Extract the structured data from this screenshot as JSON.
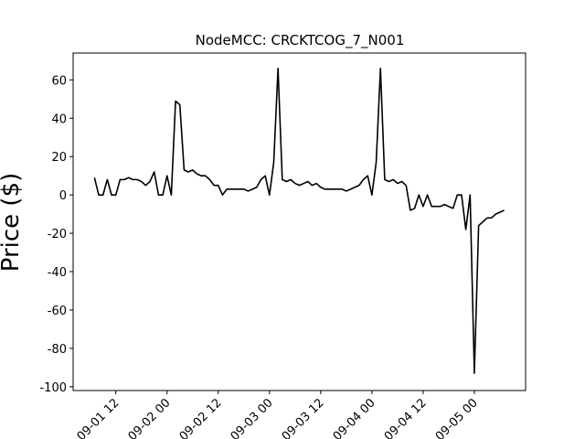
{
  "chart_data": {
    "type": "line",
    "title": "NodeMCC: CRCKTCOG_7_N001",
    "y_label": "Price ($)",
    "x": [
      "09-01 07",
      "09-01 08",
      "09-01 09",
      "09-01 10",
      "09-01 11",
      "09-01 12",
      "09-01 13",
      "09-01 14",
      "09-01 15",
      "09-01 16",
      "09-01 17",
      "09-01 18",
      "09-01 19",
      "09-01 20",
      "09-01 21",
      "09-01 22",
      "09-01 23",
      "09-02 00",
      "09-02 01",
      "09-02 02",
      "09-02 03",
      "09-02 04",
      "09-02 05",
      "09-02 06",
      "09-02 07",
      "09-02 08",
      "09-02 09",
      "09-02 10",
      "09-02 11",
      "09-02 12",
      "09-02 13",
      "09-02 14",
      "09-02 15",
      "09-02 16",
      "09-02 17",
      "09-02 18",
      "09-02 19",
      "09-02 20",
      "09-02 21",
      "09-02 22",
      "09-02 23",
      "09-03 00",
      "09-03 01",
      "09-03 02",
      "09-03 03",
      "09-03 04",
      "09-03 05",
      "09-03 06",
      "09-03 07",
      "09-03 08",
      "09-03 09",
      "09-03 10",
      "09-03 11",
      "09-03 12",
      "09-03 13",
      "09-03 14",
      "09-03 15",
      "09-03 16",
      "09-03 17",
      "09-03 18",
      "09-03 19",
      "09-03 20",
      "09-03 21",
      "09-03 22",
      "09-03 23",
      "09-04 00",
      "09-04 01",
      "09-04 02",
      "09-04 03",
      "09-04 04",
      "09-04 05",
      "09-04 06",
      "09-04 07",
      "09-04 08",
      "09-04 09",
      "09-04 10",
      "09-04 11",
      "09-04 12",
      "09-04 13",
      "09-04 14",
      "09-04 15",
      "09-04 16",
      "09-04 17",
      "09-04 18",
      "09-04 19",
      "09-04 20",
      "09-04 21",
      "09-04 22",
      "09-04 23",
      "09-05 00",
      "09-05 01",
      "09-05 02",
      "09-05 03",
      "09-05 04",
      "09-05 05",
      "09-05 06",
      "09-05 07"
    ],
    "series": [
      {
        "color": "#000000",
        "values": [
          9,
          0,
          0,
          8,
          0,
          0,
          8,
          8,
          9,
          8,
          8,
          7,
          5,
          7,
          12,
          0,
          0,
          10,
          0,
          49,
          47,
          13,
          12,
          13,
          11,
          10,
          10,
          8,
          5,
          5,
          0,
          3,
          3,
          3,
          3,
          3,
          2,
          3,
          4,
          8,
          10,
          0,
          17,
          66,
          8,
          7,
          8,
          6,
          5,
          6,
          7,
          5,
          6,
          4,
          3,
          3,
          3,
          3,
          3,
          2,
          3,
          4,
          5,
          8,
          10,
          0,
          17,
          66,
          8,
          7,
          8,
          6,
          7,
          5,
          -8,
          -7,
          0,
          -6,
          0,
          -6,
          -6,
          -6,
          -5,
          -6,
          -7,
          0,
          0,
          -18,
          0,
          -93,
          -16,
          -14,
          -12,
          -12,
          -10,
          -9,
          -8
        ]
      }
    ],
    "xlim": [
      "09-01 02",
      "09-05 12"
    ],
    "xticks": [
      "09-01 12",
      "09-02 00",
      "09-02 12",
      "09-03 00",
      "09-03 12",
      "09-04 00",
      "09-04 12",
      "09-05 00"
    ],
    "ylim": [
      -102,
      74
    ],
    "yticks": [
      -100,
      -80,
      -60,
      -40,
      -20,
      0,
      20,
      40,
      60
    ]
  }
}
